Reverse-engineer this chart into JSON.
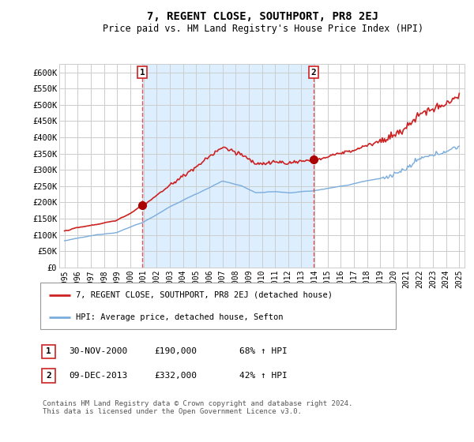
{
  "title": "7, REGENT CLOSE, SOUTHPORT, PR8 2EJ",
  "subtitle": "Price paid vs. HM Land Registry's House Price Index (HPI)",
  "ylabel_ticks": [
    "£0",
    "£50K",
    "£100K",
    "£150K",
    "£200K",
    "£250K",
    "£300K",
    "£350K",
    "£400K",
    "£450K",
    "£500K",
    "£550K",
    "£600K"
  ],
  "ylim": [
    0,
    625000
  ],
  "ytick_values": [
    0,
    50000,
    100000,
    150000,
    200000,
    250000,
    300000,
    350000,
    400000,
    450000,
    500000,
    550000,
    600000
  ],
  "xlim_start": 1994.6,
  "xlim_end": 2025.4,
  "sale1_date": 2000.92,
  "sale1_price": 190000,
  "sale1_label": "1",
  "sale2_date": 2013.94,
  "sale2_price": 332000,
  "sale2_label": "2",
  "line_red_color": "#cc2222",
  "line_blue_color": "#7aacdc",
  "shaded_color": "#ddeeff",
  "sale_marker_color": "#aa0000",
  "vline_color": "#dd5555",
  "legend_label_red": "7, REGENT CLOSE, SOUTHPORT, PR8 2EJ (detached house)",
  "legend_label_blue": "HPI: Average price, detached house, Sefton",
  "table_row1": [
    "1",
    "30-NOV-2000",
    "£190,000",
    "68% ↑ HPI"
  ],
  "table_row2": [
    "2",
    "09-DEC-2013",
    "£332,000",
    "42% ↑ HPI"
  ],
  "footer": "Contains HM Land Registry data © Crown copyright and database right 2024.\nThis data is licensed under the Open Government Licence v3.0.",
  "background_color": "#ffffff",
  "grid_color": "#cccccc"
}
